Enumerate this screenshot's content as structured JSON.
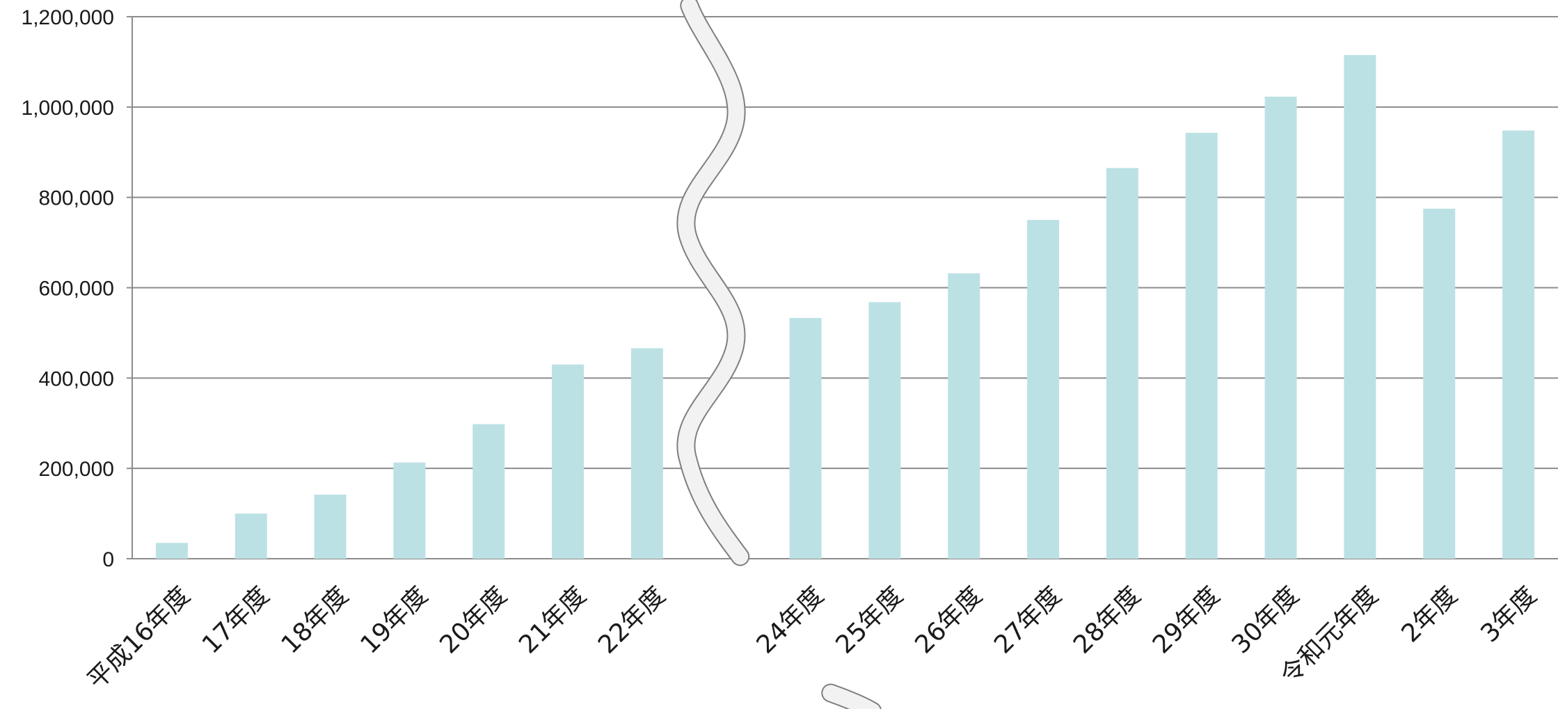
{
  "chart_data": {
    "type": "bar",
    "categories": [
      "平成16年度",
      "17年度",
      "18年度",
      "19年度",
      "20年度",
      "21年度",
      "22年度",
      "",
      "24年度",
      "25年度",
      "26年度",
      "27年度",
      "28年度",
      "29年度",
      "30年度",
      "令和元年度",
      "2年度",
      "3年度"
    ],
    "values": [
      35000,
      100000,
      142000,
      213000,
      298000,
      430000,
      466000,
      null,
      533000,
      568000,
      632000,
      750000,
      865000,
      943000,
      1023000,
      1115000,
      775000,
      948000
    ],
    "title": "",
    "xlabel": "",
    "ylabel": "",
    "ylim": [
      0,
      1200000
    ],
    "yticks": [
      "0",
      "200,000",
      "400,000",
      "600,000",
      "800,000",
      "1,000,000",
      "1,200,000"
    ],
    "grid": true,
    "axis_break": "between 22年度 and 24年度",
    "bar_color": "#bce1e4"
  }
}
